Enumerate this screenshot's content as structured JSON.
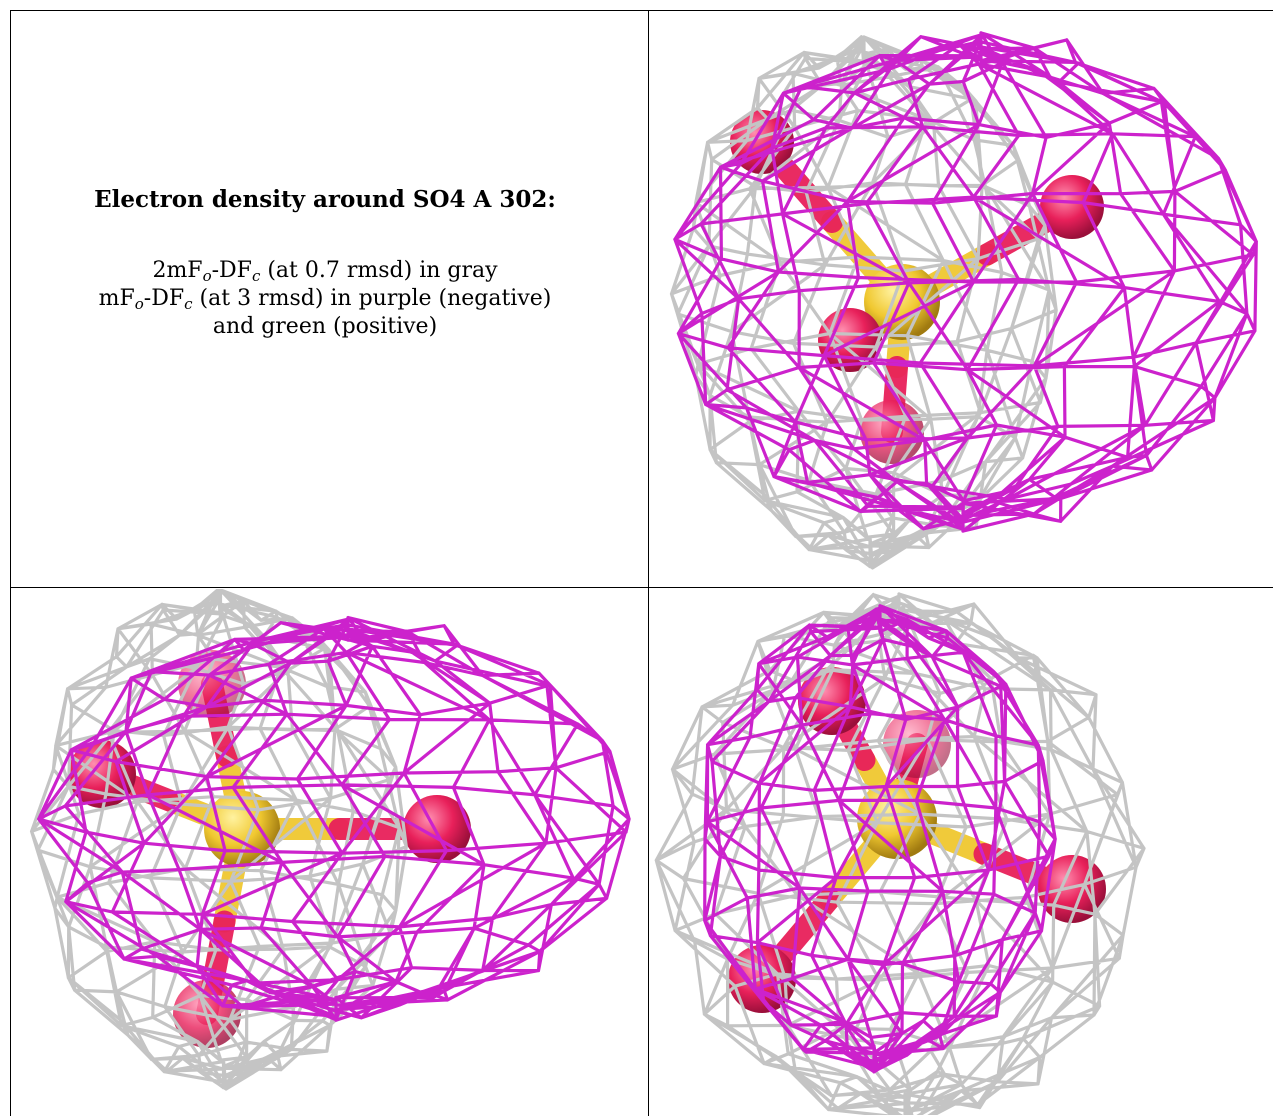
{
  "caption": {
    "title": "Electron density around SO4 A 302:",
    "line1_prefix": "2mF",
    "line1_sub1": "o",
    "line1_mid": "-DF",
    "line1_sub2": "c",
    "line1_suffix": " (at 0.7 rmsd) in gray",
    "line2_prefix": "mF",
    "line2_sub1": "o",
    "line2_mid": "-DF",
    "line2_sub2": "c",
    "line2_suffix": " (at 3 rmsd) in purple (negative)",
    "line3": "and green (positive)"
  },
  "colors": {
    "gray_mesh": "#c4c4c4",
    "purple_mesh": "#cc22cc",
    "oxygen": "#e8205a",
    "sulfur": "#f0c830"
  },
  "panels": [
    {
      "name": "view-top-right"
    },
    {
      "name": "view-bottom-left"
    },
    {
      "name": "view-bottom-right"
    }
  ]
}
